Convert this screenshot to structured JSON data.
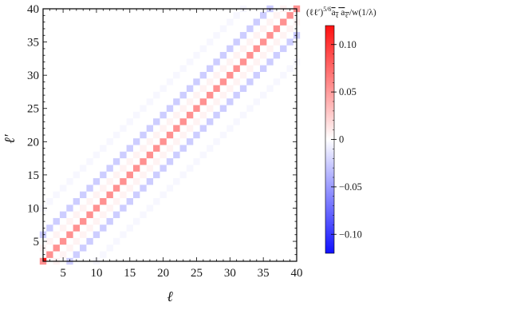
{
  "chart_data": {
    "type": "heatmap",
    "title": "",
    "xlabel": "ℓ",
    "ylabel": "ℓ′",
    "xlim": [
      2,
      40
    ],
    "ylim": [
      2,
      40
    ],
    "x_ticks": [
      5,
      10,
      15,
      20,
      25,
      30,
      35,
      40
    ],
    "y_ticks": [
      5,
      10,
      15,
      20,
      25,
      30,
      35,
      40
    ],
    "grid": false,
    "colorbar": {
      "title": "(ℓℓ′)^{5/6} ⟨a_ℓ a_ℓ′⟩ / w(1/λ)",
      "title_main": "(ℓℓ′)",
      "title_sup": "5/6",
      "title_a1": "a",
      "title_sub1": "ℓ",
      "title_a2": "a",
      "title_sub2": "ℓ′",
      "title_tail": "/w(1/λ)",
      "range": [
        -0.12,
        0.12
      ],
      "ticks": [
        0.1,
        0.05,
        0,
        -0.05,
        -0.1
      ],
      "tick_labels": [
        "0.10",
        "0.05",
        "0",
        "−0.05",
        "−0.10"
      ],
      "placement": "right",
      "colors": {
        "negative": "#1010ff",
        "zero": "#ffffff",
        "positive": "#ff1010"
      }
    },
    "diagonal_bands": [
      {
        "offset": 0,
        "value": 0.055
      },
      {
        "offset": 4,
        "value": -0.025
      },
      {
        "offset": -4,
        "value": -0.025
      },
      {
        "offset": 8,
        "value": -0.004
      },
      {
        "offset": -8,
        "value": -0.004
      },
      {
        "offset": 2,
        "value": 0.006
      },
      {
        "offset": -2,
        "value": 0.006
      }
    ],
    "cell_step": 1,
    "corner_cell": {
      "x": 2,
      "y": 2,
      "value": 0.12
    }
  }
}
